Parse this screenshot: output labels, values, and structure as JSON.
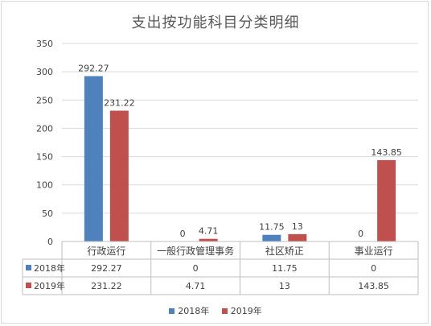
{
  "chart_data": {
    "type": "bar",
    "title": "支出按功能科目分类明细",
    "categories": [
      "行政运行",
      "一般行政管理事务",
      "社区矫正",
      "事业运行"
    ],
    "series": [
      {
        "name": "2018年",
        "values": [
          292.27,
          0,
          11.75,
          0
        ],
        "labels": [
          "292.27",
          "0",
          "11.75",
          "0"
        ],
        "color": "#4f81bd"
      },
      {
        "name": "2019年",
        "values": [
          231.22,
          4.71,
          13,
          143.85
        ],
        "labels": [
          "231.22",
          "4.71",
          "13",
          "143.85"
        ],
        "color": "#c0504d"
      }
    ],
    "ylim": [
      0,
      350
    ],
    "yticks": [
      0,
      50,
      100,
      150,
      200,
      250,
      300,
      350
    ],
    "grid": true,
    "legend": "bottom",
    "data_table": true
  }
}
